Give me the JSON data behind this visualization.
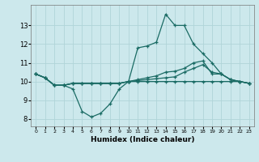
{
  "xlabel": "Humidex (Indice chaleur)",
  "background_color": "#cce8ec",
  "line_color": "#1a6b64",
  "grid_color": "#b0d4d8",
  "series": [
    [
      10.4,
      10.2,
      9.8,
      9.8,
      9.6,
      8.4,
      8.1,
      8.3,
      8.8,
      9.6,
      10.0,
      11.8,
      11.9,
      12.1,
      13.6,
      13.0,
      13.0,
      12.0,
      11.5,
      11.0,
      10.4,
      10.1,
      10.0,
      9.9
    ],
    [
      10.4,
      10.2,
      9.8,
      9.8,
      9.9,
      9.9,
      9.9,
      9.9,
      9.9,
      9.9,
      10.0,
      10.05,
      10.1,
      10.15,
      10.2,
      10.25,
      10.5,
      10.7,
      10.9,
      10.5,
      10.4,
      10.1,
      10.0,
      9.9
    ],
    [
      10.4,
      10.2,
      9.8,
      9.8,
      9.9,
      9.9,
      9.9,
      9.9,
      9.9,
      9.9,
      10.0,
      10.1,
      10.2,
      10.3,
      10.5,
      10.55,
      10.7,
      11.0,
      11.1,
      10.4,
      10.4,
      10.1,
      10.0,
      9.9
    ],
    [
      10.4,
      10.2,
      9.8,
      9.8,
      9.9,
      9.9,
      9.9,
      9.9,
      9.9,
      9.9,
      10.0,
      10.0,
      10.0,
      10.0,
      10.0,
      10.0,
      10.0,
      10.0,
      10.0,
      10.0,
      10.0,
      10.0,
      10.0,
      9.9
    ]
  ],
  "xlim": [
    -0.5,
    23.5
  ],
  "ylim": [
    7.6,
    14.1
  ],
  "yticks": [
    8,
    9,
    10,
    11,
    12,
    13
  ],
  "xticks": [
    0,
    1,
    2,
    3,
    4,
    5,
    6,
    7,
    8,
    9,
    10,
    11,
    12,
    13,
    14,
    15,
    16,
    17,
    18,
    19,
    20,
    21,
    22,
    23
  ],
  "xtick_labels": [
    "0",
    "1",
    "2",
    "3",
    "4",
    "5",
    "6",
    "7",
    "8",
    "9",
    "10",
    "11",
    "12",
    "13",
    "14",
    "15",
    "16",
    "17",
    "18",
    "19",
    "20",
    "21",
    "22",
    "23"
  ]
}
